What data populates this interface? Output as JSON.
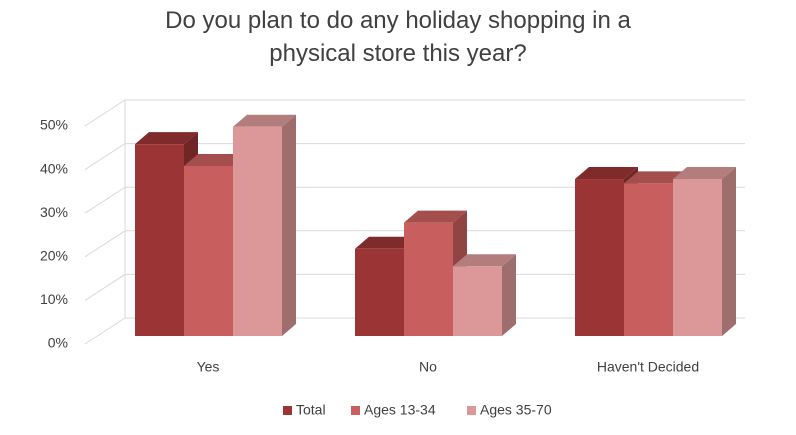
{
  "chart_data": {
    "type": "bar3d",
    "title": "Do you plan to do any holiday shopping in a physical store this year?",
    "categories": [
      "Yes",
      "No",
      "Haven't Decided"
    ],
    "series": [
      {
        "name": "Total",
        "color": "#9b3535",
        "values": [
          44,
          20,
          36
        ]
      },
      {
        "name": "Ages 13-34",
        "color": "#c85f5e",
        "values": [
          39,
          26,
          35
        ]
      },
      {
        "name": "Ages 35-70",
        "color": "#dc9898",
        "values": [
          48,
          16,
          36
        ]
      }
    ],
    "ylim": [
      0,
      50
    ],
    "yticks": [
      {
        "value": 0,
        "label": "0%"
      },
      {
        "value": 10,
        "label": "10%"
      },
      {
        "value": 20,
        "label": "20%"
      },
      {
        "value": 30,
        "label": "30%"
      },
      {
        "value": 40,
        "label": "40%"
      },
      {
        "value": 50,
        "label": "50%"
      }
    ],
    "grid": true,
    "legend": "bottom"
  }
}
